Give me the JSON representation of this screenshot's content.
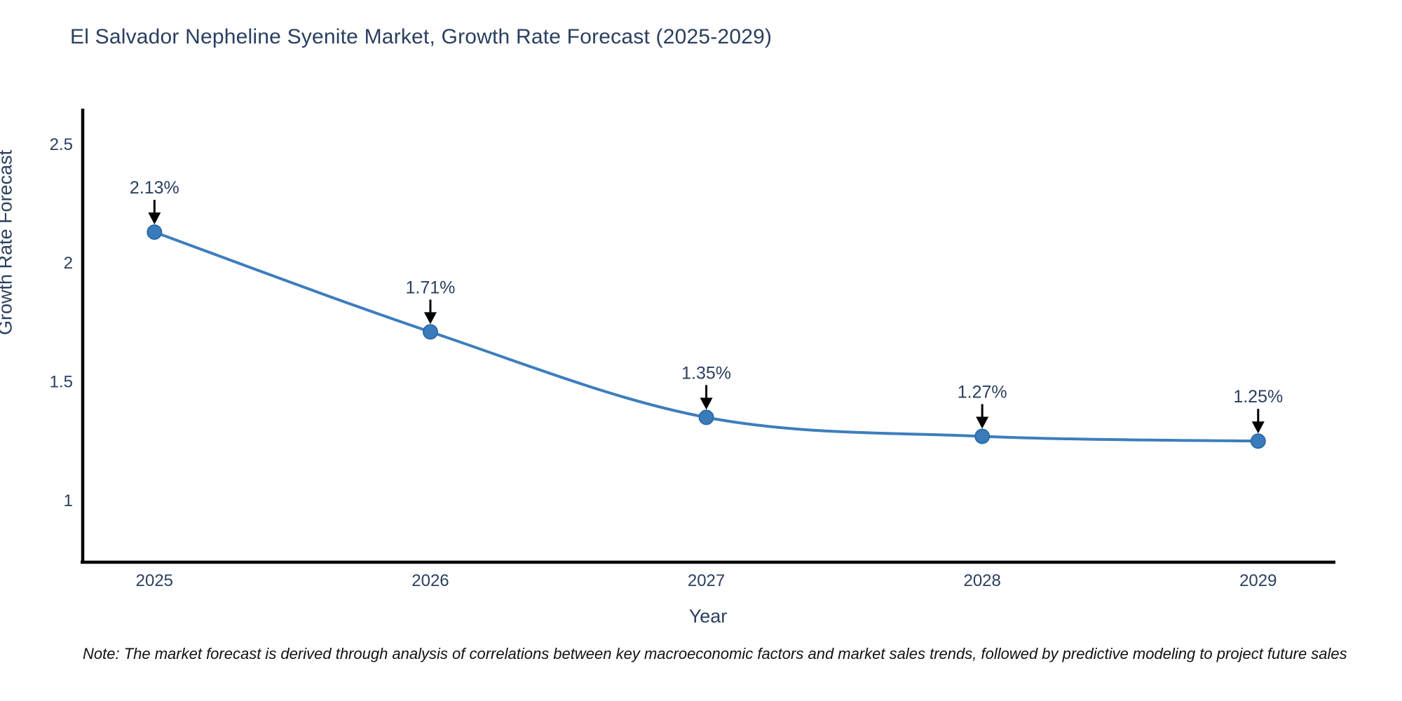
{
  "title": "El Salvador Nepheline Syenite Market, Growth Rate Forecast (2025-2029)",
  "note": "Note: The market forecast is derived through analysis of correlations between key macroeconomic factors and market sales trends, followed by predictive modeling to project future sales",
  "chart_data": {
    "type": "line",
    "title": "El Salvador Nepheline Syenite Market, Growth Rate Forecast (2025-2029)",
    "xlabel": "Year",
    "ylabel": "Growth Rate Forecast",
    "x": [
      2025,
      2026,
      2027,
      2028,
      2029
    ],
    "values": [
      2.13,
      1.71,
      1.35,
      1.27,
      1.25
    ],
    "point_labels": [
      "2.13%",
      "1.71%",
      "1.35%",
      "1.27%",
      "1.25%"
    ],
    "xticks": [
      "2025",
      "2026",
      "2027",
      "2028",
      "2029"
    ],
    "yticks": [
      1,
      1.5,
      2,
      2.5
    ],
    "xlim": [
      2024.74,
      2029.28
    ],
    "ylim": [
      0.74,
      2.65
    ],
    "grid": false,
    "legend": "none",
    "line_shape": "spline",
    "line_color": "#3d7ebd",
    "marker_fill": "#3a7cbb",
    "marker_edge": "#2f6ba6",
    "axis_color": "#000000",
    "text_color": "#2a3f5f",
    "annotation_arrow_color": "#000000"
  }
}
